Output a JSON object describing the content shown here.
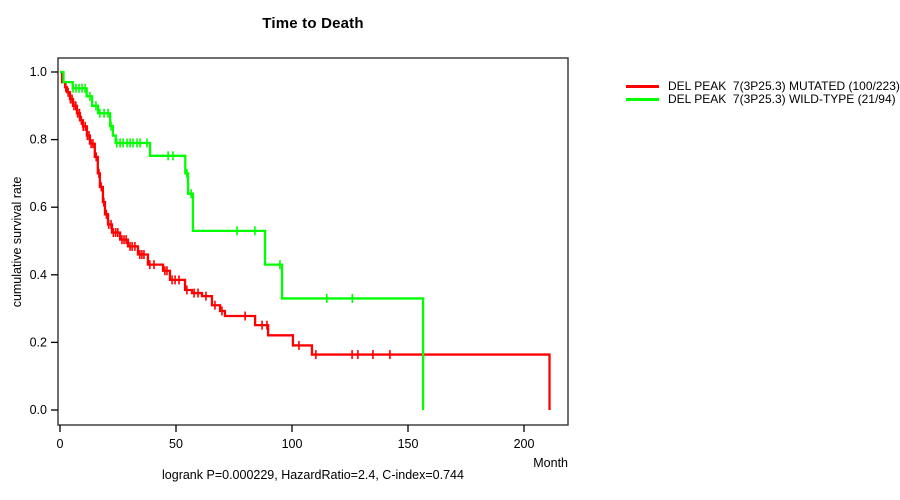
{
  "page": {
    "title": "Time to Death",
    "y_axis_label": "cumulative survival rate",
    "x_axis_label": "Month",
    "annotation": "logrank P=0.000229, HazardRatio=2.4, C-index=0.744"
  },
  "legend": {
    "items": [
      {
        "label": "DEL PEAK  7(3P25.3) MUTATED (100/223)",
        "color": "#ff0000"
      },
      {
        "label": "DEL PEAK  7(3P25.3) WILD-TYPE (21/94)",
        "color": "#00ff00"
      }
    ]
  },
  "chart_data": {
    "type": "line",
    "subtype": "kaplan-meier-step",
    "title": "Time to Death",
    "xlabel": "Month",
    "ylabel": "cumulative survival rate",
    "xlim": [
      0,
      219
    ],
    "ylim": [
      0.0,
      1.0
    ],
    "x_ticks": [
      0,
      50,
      100,
      150,
      200
    ],
    "y_ticks": [
      1.0,
      0.8,
      0.6,
      0.4,
      0.2,
      0.0
    ],
    "grid": false,
    "legend_position": "right-outside",
    "annotation": "logrank P=0.000229, HazardRatio=2.4, C-index=0.744",
    "series": [
      {
        "name": "DEL PEAK  7(3P25.3) MUTATED (100/223)",
        "color": "#ff0000",
        "steps": [
          [
            0,
            1.0
          ],
          [
            0.9,
            0.97
          ],
          [
            2.2,
            0.955
          ],
          [
            3.0,
            0.94
          ],
          [
            4.3,
            0.92
          ],
          [
            5.6,
            0.9
          ],
          [
            7.3,
            0.878
          ],
          [
            8.6,
            0.857
          ],
          [
            9.9,
            0.839
          ],
          [
            11.6,
            0.812
          ],
          [
            12.9,
            0.788
          ],
          [
            15.0,
            0.749
          ],
          [
            16.3,
            0.7
          ],
          [
            17.2,
            0.66
          ],
          [
            18.5,
            0.615
          ],
          [
            19.4,
            0.579
          ],
          [
            20.7,
            0.549
          ],
          [
            22.4,
            0.525
          ],
          [
            25.9,
            0.504
          ],
          [
            29.3,
            0.484
          ],
          [
            33.6,
            0.46
          ],
          [
            37.9,
            0.43
          ],
          [
            44.4,
            0.412
          ],
          [
            47.4,
            0.385
          ],
          [
            53.9,
            0.355
          ],
          [
            56.9,
            0.346
          ],
          [
            61.2,
            0.337
          ],
          [
            65.5,
            0.31
          ],
          [
            69.0,
            0.293
          ],
          [
            71.1,
            0.278
          ],
          [
            84.1,
            0.251
          ],
          [
            89.7,
            0.221
          ],
          [
            100.4,
            0.191
          ],
          [
            108.6,
            0.164
          ],
          [
            211,
            0.0
          ]
        ],
        "censor_ticks": [
          2.5,
          3.5,
          4.5,
          5.2,
          6.0,
          6.8,
          7.6,
          8.4,
          9.2,
          10.0,
          10.9,
          11.8,
          12.5,
          13.4,
          14.2,
          15.6,
          16.8,
          17.8,
          18.9,
          20.0,
          21.0,
          22.0,
          23.0,
          24.0,
          24.9,
          26.7,
          27.6,
          28.5,
          30.2,
          31.1,
          32.3,
          34.4,
          35.3,
          36.2,
          38.7,
          40.5,
          45.2,
          46.1,
          48.3,
          49.6,
          51.3,
          54.7,
          57.8,
          59.5,
          62.9,
          66.8,
          69.8,
          79.8,
          87.1,
          89.2,
          103.0,
          110.3,
          125.9,
          128.4,
          134.9,
          142.2
        ]
      },
      {
        "name": "DEL PEAK  7(3P25.3) WILD-TYPE (21/94)",
        "color": "#00ff00",
        "steps": [
          [
            0,
            1.0
          ],
          [
            1.5,
            0.97
          ],
          [
            5.5,
            0.952
          ],
          [
            11.5,
            0.928
          ],
          [
            13.8,
            0.9
          ],
          [
            16.4,
            0.878
          ],
          [
            21.6,
            0.84
          ],
          [
            22.8,
            0.812
          ],
          [
            24.0,
            0.79
          ],
          [
            38.8,
            0.752
          ],
          [
            54.0,
            0.7
          ],
          [
            55.2,
            0.64
          ],
          [
            57.3,
            0.53
          ],
          [
            88.4,
            0.43
          ],
          [
            95.7,
            0.33
          ],
          [
            156.5,
            0.0
          ]
        ],
        "censor_ticks": [
          5.6,
          6.9,
          8.2,
          9.5,
          10.8,
          12.9,
          15.5,
          17.2,
          19.0,
          20.7,
          22.0,
          24.5,
          25.9,
          27.2,
          28.9,
          30.2,
          31.5,
          33.2,
          34.5,
          37.5,
          46.6,
          48.7,
          54.7,
          56.5,
          76.3,
          84.0,
          94.8,
          115.0,
          126.0
        ]
      }
    ]
  }
}
